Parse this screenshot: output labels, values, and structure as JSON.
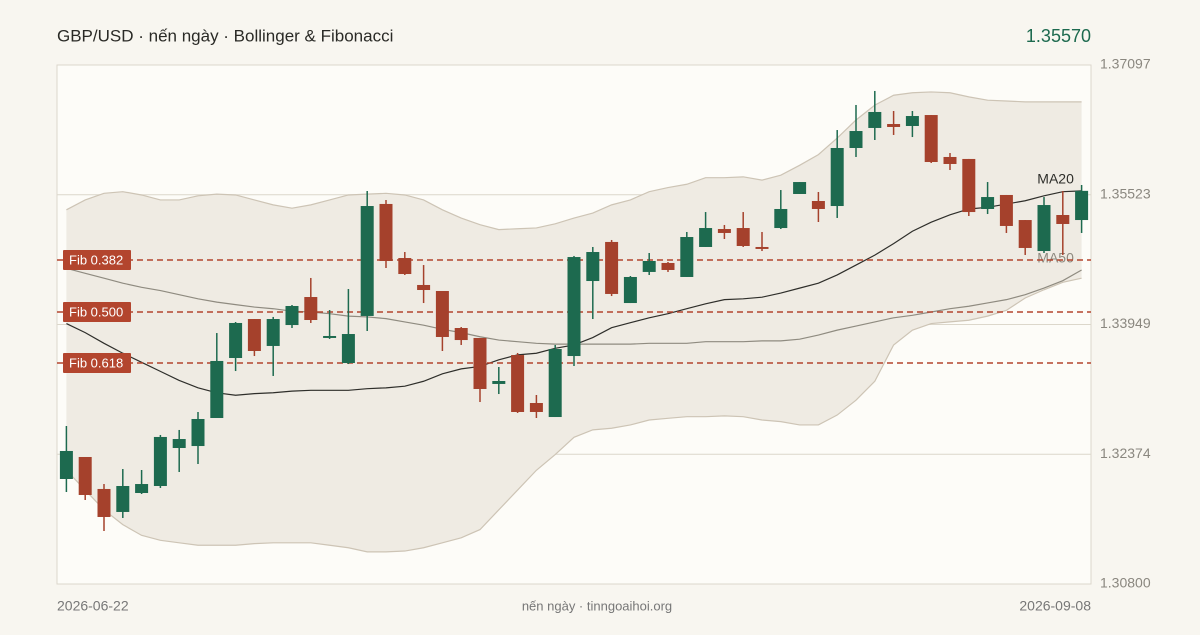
{
  "chart_data": {
    "type": "candlestick",
    "title": "GBP/USD · nến ngày · Bollinger & Fibonacci",
    "last_price": "1.35570",
    "source": "nến ngày · tinngoaihoi.org",
    "categories": [
      "2026-06-22",
      null,
      null,
      null,
      null,
      null,
      null,
      null,
      null,
      null,
      null,
      null,
      null,
      null,
      null,
      null,
      null,
      null,
      null,
      null,
      null,
      null,
      null,
      null,
      null,
      null,
      null,
      null,
      null,
      null,
      null,
      null,
      null,
      null,
      null,
      null,
      null,
      null,
      null,
      null,
      null,
      null,
      null,
      null,
      null,
      null,
      null,
      null,
      null,
      null,
      null,
      null,
      null,
      null,
      "2026-09-08"
    ],
    "open": [
      1.32074,
      1.32341,
      1.31953,
      1.31674,
      1.31904,
      1.31989,
      1.3245,
      1.32474,
      1.32814,
      1.33542,
      1.34015,
      1.33688,
      1.33942,
      1.34282,
      1.33785,
      1.33481,
      1.34052,
      1.35411,
      1.34755,
      1.34428,
      1.34355,
      1.33906,
      1.33785,
      1.33227,
      1.33578,
      1.32996,
      1.32826,
      1.33566,
      1.34476,
      1.3495,
      1.34209,
      1.34586,
      1.34695,
      1.34525,
      1.34889,
      1.35107,
      1.35119,
      1.34889,
      1.35119,
      1.35532,
      1.35447,
      1.35386,
      1.3609,
      1.36333,
      1.36381,
      1.36357,
      1.3649,
      1.35981,
      1.35957,
      1.3535,
      1.3552,
      1.35216,
      1.3484,
      1.35277,
      1.35216
    ],
    "high": [
      1.32717,
      1.32341,
      1.32013,
      1.32195,
      1.32183,
      1.32608,
      1.32669,
      1.32887,
      1.33845,
      1.33979,
      1.34015,
      1.3404,
      1.34185,
      1.34513,
      1.34124,
      1.34379,
      1.35568,
      1.35459,
      1.34828,
      1.3467,
      1.34355,
      1.33918,
      1.33785,
      1.33433,
      1.33603,
      1.33093,
      1.337,
      1.3478,
      1.34889,
      1.34974,
      1.34537,
      1.34816,
      1.34707,
      1.35071,
      1.35313,
      1.35156,
      1.35313,
      1.35071,
      1.3558,
      1.35677,
      1.35556,
      1.36308,
      1.36612,
      1.36782,
      1.36539,
      1.36539,
      1.3649,
      1.36029,
      1.35957,
      1.35677,
      1.3552,
      1.35216,
      1.35495,
      1.35568,
      1.35641
    ],
    "low": [
      1.31916,
      1.31819,
      1.31443,
      1.31601,
      1.31892,
      1.31965,
      1.32159,
      1.32256,
      1.32814,
      1.33384,
      1.33566,
      1.33324,
      1.33906,
      1.33967,
      1.33773,
      1.33469,
      1.3387,
      1.34634,
      1.34549,
      1.34209,
      1.33627,
      1.337,
      1.33008,
      1.33105,
      1.32875,
      1.32814,
      1.32826,
      1.33445,
      1.34015,
      1.34294,
      1.34209,
      1.34549,
      1.34586,
      1.34525,
      1.34889,
      1.34986,
      1.34889,
      1.3484,
      1.35107,
      1.35532,
      1.35192,
      1.35241,
      1.35981,
      1.36187,
      1.36248,
      1.36223,
      1.35908,
      1.35823,
      1.35265,
      1.35289,
      1.35059,
      1.34792,
      1.34816,
      1.34792,
      1.35059
    ],
    "close": [
      1.32414,
      1.3188,
      1.31613,
      1.31989,
      1.32013,
      1.32584,
      1.32559,
      1.32802,
      1.33506,
      1.33967,
      1.33627,
      1.34015,
      1.34173,
      1.34003,
      1.33809,
      1.33833,
      1.35386,
      1.34719,
      1.34561,
      1.34367,
      1.33797,
      1.3376,
      1.33166,
      1.33263,
      1.32887,
      1.32887,
      1.33651,
      1.34767,
      1.34828,
      1.34319,
      1.34525,
      1.34719,
      1.3461,
      1.3501,
      1.35119,
      1.35059,
      1.34901,
      1.34865,
      1.3535,
      1.35677,
      1.3535,
      1.3609,
      1.36296,
      1.36527,
      1.36345,
      1.36478,
      1.3592,
      1.35896,
      1.35313,
      1.35495,
      1.35144,
      1.34877,
      1.35398,
      1.35168,
      1.3557
    ],
    "up_color": "#1d6a4f",
    "down_color": "#a5412c",
    "series": [
      {
        "name": "MA20",
        "color": "#2e2e2a",
        "values": [
          1.3396,
          1.3385,
          1.3372,
          1.336,
          1.3349,
          1.3338,
          1.3327,
          1.3318,
          1.3312,
          1.3309,
          1.3311,
          1.3312,
          1.3314,
          1.3315,
          1.3315,
          1.3315,
          1.3317,
          1.3318,
          1.332,
          1.3326,
          1.3335,
          1.3341,
          1.3344,
          1.3352,
          1.3358,
          1.336,
          1.3366,
          1.337,
          1.3379,
          1.3391,
          1.3397,
          1.3403,
          1.3408,
          1.3414,
          1.342,
          1.3425,
          1.3426,
          1.3428,
          1.3433,
          1.3439,
          1.3445,
          1.3455,
          1.3467,
          1.3479,
          1.3493,
          1.3508,
          1.3519,
          1.3528,
          1.3535,
          1.3537,
          1.3541,
          1.3545,
          1.3551,
          1.3556,
          1.3557
        ]
      },
      {
        "name": "MA50",
        "color": "#8f8b80",
        "values": [
          1.3463,
          1.3457,
          1.3451,
          1.3445,
          1.344,
          1.3436,
          1.3431,
          1.3426,
          1.3422,
          1.3419,
          1.3416,
          1.3414,
          1.3411,
          1.341,
          1.3408,
          1.3405,
          1.3404,
          1.3402,
          1.3398,
          1.3394,
          1.3389,
          1.3385,
          1.338,
          1.3376,
          1.3374,
          1.3372,
          1.3371,
          1.3371,
          1.3371,
          1.3371,
          1.3371,
          1.3372,
          1.3372,
          1.3372,
          1.3374,
          1.3374,
          1.3374,
          1.3375,
          1.3375,
          1.3377,
          1.3382,
          1.3388,
          1.3393,
          1.3398,
          1.3403,
          1.3406,
          1.341,
          1.3414,
          1.3417,
          1.3421,
          1.3425,
          1.3431,
          1.3439,
          1.3448,
          1.3461
        ]
      }
    ],
    "bands": {
      "color": "#efebe3",
      "stroke": "#cdc4b5",
      "upper": [
        1.3534,
        1.3546,
        1.3554,
        1.3556,
        1.3552,
        1.3546,
        1.3546,
        1.3551,
        1.3553,
        1.3552,
        1.3546,
        1.354,
        1.3536,
        1.354,
        1.3546,
        1.3552,
        1.3553,
        1.3554,
        1.3552,
        1.3546,
        1.3534,
        1.3524,
        1.3516,
        1.351,
        1.3511,
        1.3512,
        1.3517,
        1.3524,
        1.353,
        1.354,
        1.3546,
        1.3556,
        1.3561,
        1.3565,
        1.3573,
        1.3573,
        1.3574,
        1.357,
        1.3576,
        1.3588,
        1.3601,
        1.3621,
        1.3643,
        1.3661,
        1.3673,
        1.3676,
        1.3677,
        1.3676,
        1.3671,
        1.3667,
        1.3666,
        1.3665,
        1.3665,
        1.3665,
        1.3665
      ],
      "lower": [
        1.3218,
        1.3194,
        1.317,
        1.3152,
        1.3139,
        1.3133,
        1.313,
        1.3127,
        1.3127,
        1.3127,
        1.3129,
        1.313,
        1.313,
        1.313,
        1.3127,
        1.3124,
        1.3119,
        1.3119,
        1.312,
        1.3124,
        1.313,
        1.3136,
        1.3146,
        1.317,
        1.3194,
        1.3218,
        1.3237,
        1.3258,
        1.3267,
        1.3269,
        1.3273,
        1.3279,
        1.3281,
        1.3283,
        1.3283,
        1.3284,
        1.3283,
        1.3279,
        1.3277,
        1.3273,
        1.3273,
        1.3285,
        1.3303,
        1.3326,
        1.337,
        1.3388,
        1.3396,
        1.3398,
        1.34,
        1.3405,
        1.3412,
        1.3427,
        1.3437,
        1.3446,
        1.3451
      ]
    },
    "fib_color": "#b3452e",
    "fib_levels": [
      {
        "label": "Fib 0.382",
        "value": 1.34731
      },
      {
        "label": "Fib 0.500",
        "value": 1.341
      },
      {
        "label": "Fib 0.618",
        "value": 1.33481
      }
    ],
    "ylim": [
      1.308,
      1.37097
    ],
    "yticks": [
      {
        "value": 1.308,
        "label": "1.30800"
      },
      1.32374,
      1.33949,
      1.35523,
      1.37097
    ],
    "grid": true
  }
}
